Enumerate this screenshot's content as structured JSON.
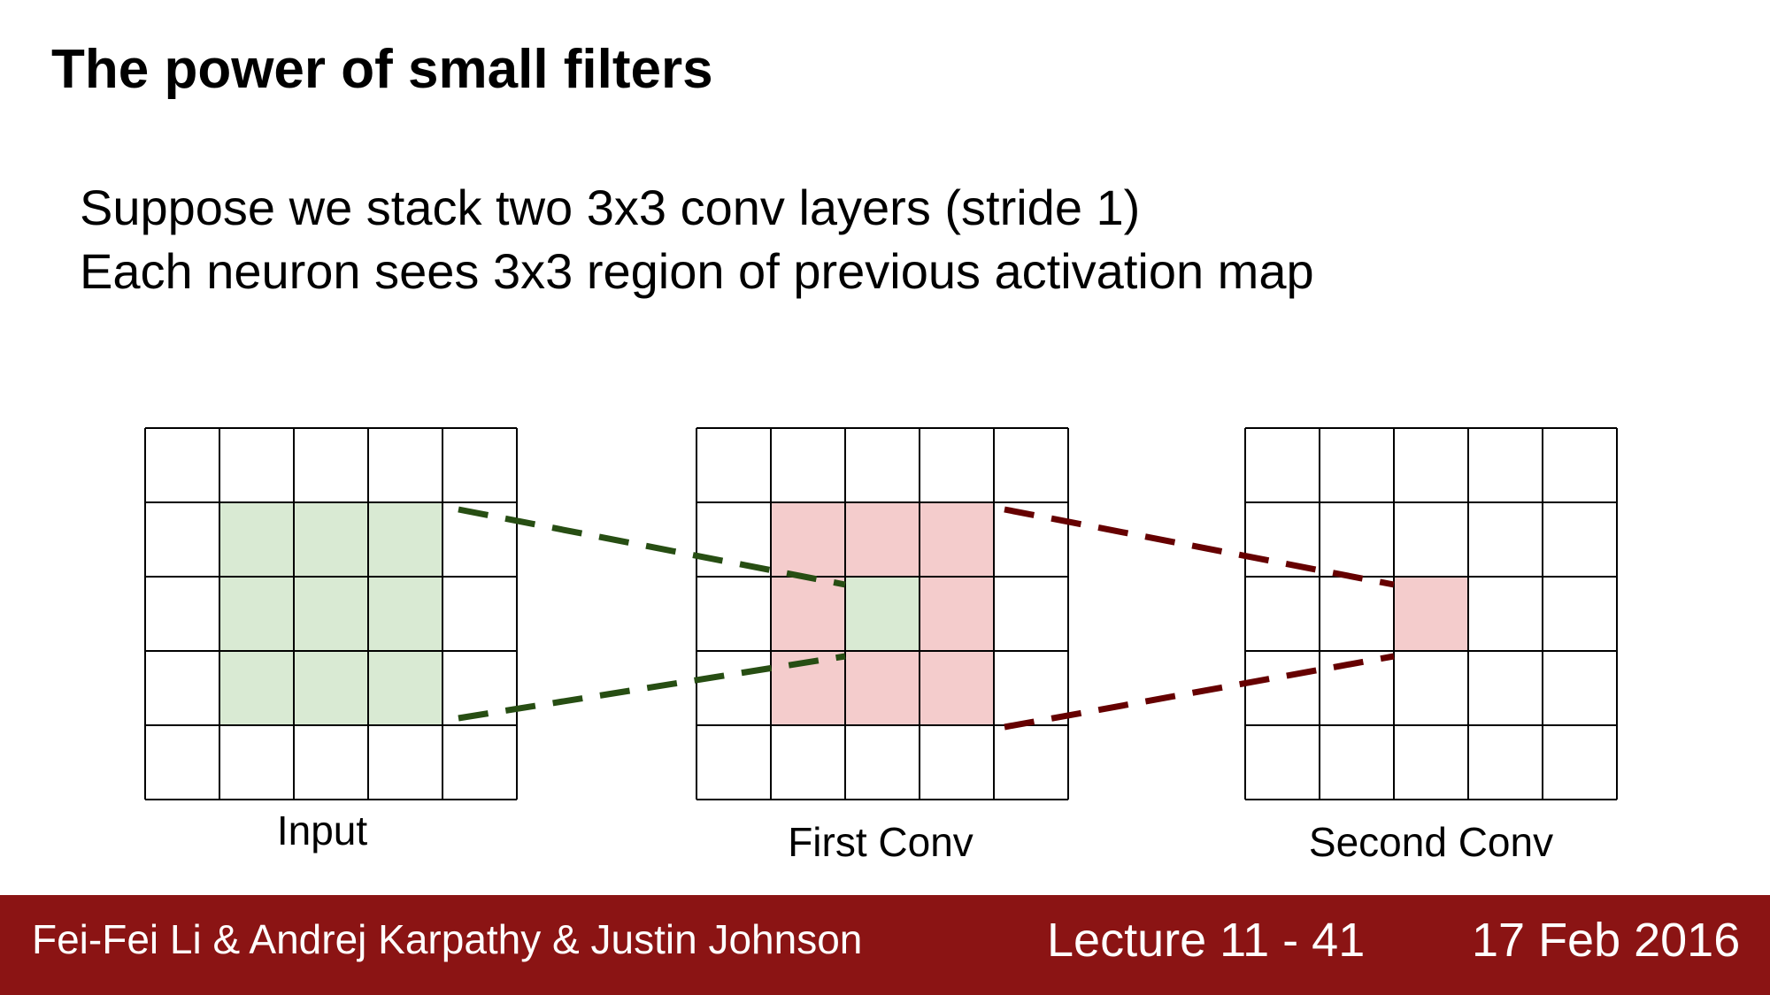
{
  "slide": {
    "title": "The power of small filters",
    "lines": [
      "Suppose we stack two 3x3 conv layers (stride 1)",
      "Each neuron sees 3x3 region of previous activation map"
    ]
  },
  "diagram": {
    "grid_size": 5,
    "colors": {
      "green_fill": "#d9ead3",
      "red_fill": "#f4cccc",
      "green_line": "#274e13",
      "red_line": "#660000",
      "grid_line": "#000000"
    },
    "grids": [
      {
        "label": "Input",
        "highlights": [
          {
            "rows": [
              1,
              3
            ],
            "cols": [
              1,
              3
            ],
            "color": "green"
          }
        ]
      },
      {
        "label": "First Conv",
        "highlights": [
          {
            "rows": [
              1,
              3
            ],
            "cols": [
              1,
              3
            ],
            "color": "red"
          },
          {
            "rows": [
              2,
              2
            ],
            "cols": [
              2,
              2
            ],
            "color": "green"
          }
        ]
      },
      {
        "label": "Second Conv",
        "highlights": [
          {
            "rows": [
              2,
              2
            ],
            "cols": [
              2,
              2
            ],
            "color": "red"
          }
        ]
      }
    ]
  },
  "footer": {
    "authors": "Fei-Fei Li & Andrej Karpathy & Justin Johnson",
    "lecture": "Lecture 11 - 41",
    "date": "17 Feb 2016"
  }
}
